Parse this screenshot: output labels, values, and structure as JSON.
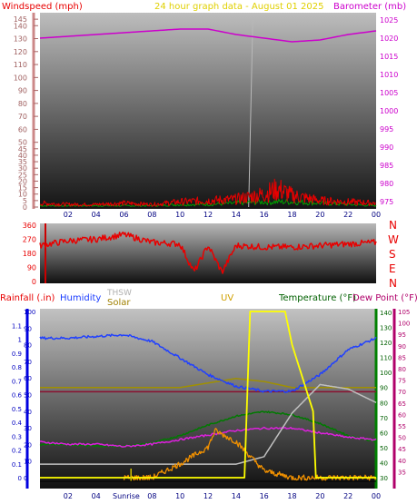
{
  "colors": {
    "wind": "#e80000",
    "gust": "#e80000",
    "baro": "#cc00cc",
    "title": "#e0d000",
    "winddir": "#e80000",
    "rain": "#1a3cff",
    "hum": "#1a3cff",
    "solar": "#a08000",
    "thsw": "#b0b0b0",
    "uv": "#ffff00",
    "temp": "#008000",
    "dew": "#b8006c",
    "hi": "#606000",
    "orange": "#f09000",
    "green": "#00a000",
    "navy": "#0000a0"
  },
  "header": {
    "windspeed": "Windspeed (mph)",
    "title": "24 hour graph data - August 01 2025",
    "barometer": "Barometer (mb)"
  },
  "labels": {
    "rainfall": "Rainfall (.in)",
    "humidity": "Humidity",
    "thsw": "THSW",
    "solar": "Solar",
    "uv": "UV",
    "temperature": "Temperature (°F)",
    "dewpoint": "Dew Point (°F)",
    "sunrise": "Sunrise",
    "compass": [
      "N",
      "W",
      "S",
      "E",
      "N"
    ]
  },
  "chart_data": [
    {
      "type": "line",
      "panel": "wind-barometer",
      "x_ticks": [
        "02",
        "04",
        "06",
        "08",
        "10",
        "12",
        "14",
        "16",
        "18",
        "20",
        "22",
        "00"
      ],
      "ylim_left": [
        0,
        150
      ],
      "yticks_left": [
        0,
        5,
        10,
        15,
        20,
        25,
        30,
        35,
        40,
        45,
        50,
        60,
        70,
        80,
        90,
        100,
        110,
        120,
        130,
        140,
        145
      ],
      "ylim_right": [
        975,
        1025
      ],
      "yticks_right": [
        975,
        980,
        985,
        990,
        995,
        1000,
        1005,
        1010,
        1015,
        1020,
        1025
      ],
      "series": [
        {
          "name": "Barometer (mb)",
          "x": [
            0,
            2,
            4,
            6,
            8,
            10,
            12,
            14,
            16,
            18,
            20,
            22,
            24
          ],
          "values": [
            1020,
            1020.5,
            1021,
            1021.5,
            1022,
            1022.5,
            1022.5,
            1021,
            1020,
            1019,
            1019.5,
            1021,
            1022
          ]
        },
        {
          "name": "Windspeed (mph)",
          "x": [
            0,
            2,
            4,
            6,
            8,
            10,
            12,
            14,
            16,
            17,
            18,
            20,
            22,
            24
          ],
          "values": [
            3,
            2,
            2,
            3,
            2,
            4,
            5,
            6,
            10,
            14,
            9,
            5,
            4,
            3
          ]
        },
        {
          "x": [
            0,
            2,
            4,
            6,
            8,
            10,
            12,
            14,
            16,
            18,
            20,
            22,
            24
          ],
          "values": [
            1,
            1,
            1,
            1,
            1,
            2,
            2,
            3,
            4,
            4,
            3,
            2,
            1
          ]
        }
      ]
    },
    {
      "type": "line",
      "panel": "wind-direction",
      "x_ticks": [
        "02",
        "04",
        "06",
        "08",
        "10",
        "12",
        "14",
        "16",
        "18",
        "20",
        "22",
        "00"
      ],
      "ylim": [
        0,
        360
      ],
      "yticks": [
        0,
        90,
        180,
        270,
        360
      ],
      "series": [
        {
          "x": [
            0,
            2,
            4,
            6,
            8,
            10,
            11,
            12,
            13,
            14,
            16,
            18,
            20,
            22,
            24
          ],
          "values": [
            230,
            260,
            270,
            300,
            250,
            240,
            60,
            230,
            60,
            230,
            220,
            220,
            230,
            240,
            250
          ]
        }
      ]
    },
    {
      "type": "line",
      "panel": "climate",
      "x_ticks": [
        "02",
        "04",
        "Sunrise",
        "08",
        "10",
        "12",
        "14",
        "16",
        "18",
        "20",
        "22",
        "00"
      ],
      "rain_ylim": [
        0,
        1.2
      ],
      "rain_yticks": [
        0,
        0.1,
        0.2,
        0.3,
        0.4,
        0.5,
        0.6,
        0.7,
        0.8,
        0.9,
        1,
        1.1
      ],
      "humidity_ylim": [
        0,
        100
      ],
      "humidity_yticks": [
        0,
        10,
        20,
        30,
        40,
        50,
        60,
        70,
        80,
        90,
        100
      ],
      "uv_ylim": [
        0,
        5
      ],
      "temp_ylim": [
        30,
        140
      ],
      "temp_yticks": [
        30,
        40,
        50,
        60,
        70,
        80,
        90,
        100,
        110,
        120,
        130,
        140
      ],
      "dew_ylim": [
        30,
        105
      ],
      "dew_yticks": [
        35,
        40,
        45,
        50,
        55,
        60,
        65,
        70,
        75,
        80,
        85,
        90,
        95,
        100,
        105
      ],
      "series": [
        {
          "name": "Humidity",
          "x": [
            0,
            2,
            4,
            6,
            8,
            10,
            12,
            14,
            16,
            18,
            20,
            22,
            24
          ],
          "values": [
            84,
            84,
            85,
            86,
            82,
            72,
            62,
            55,
            52,
            52,
            62,
            77,
            84
          ]
        },
        {
          "name": "Temperature (°F)",
          "x": [
            0,
            2,
            4,
            6,
            8,
            10,
            12,
            14,
            16,
            18,
            20,
            22,
            24
          ],
          "values": [
            52,
            52,
            51,
            51,
            53,
            58,
            65,
            71,
            74,
            72,
            66,
            58,
            54
          ]
        },
        {
          "name": "Dew Point (°F)",
          "x": [
            0,
            2,
            4,
            6,
            8,
            10,
            12,
            14,
            16,
            18,
            20,
            22,
            24
          ],
          "values": [
            48,
            47,
            47,
            46,
            47,
            49,
            51,
            53,
            54,
            54,
            52,
            50,
            49
          ]
        },
        {
          "name": "THSW",
          "x": [
            0,
            2,
            4,
            6,
            8,
            10,
            12,
            14,
            16,
            18,
            20,
            22,
            24
          ],
          "values": [
            39,
            39,
            39,
            39,
            39,
            39,
            39,
            39,
            44,
            73,
            92,
            89,
            80
          ]
        },
        {
          "name": "Solar",
          "x": [
            0,
            2,
            4,
            6,
            8,
            10,
            12,
            14,
            16,
            18,
            20,
            24
          ],
          "values": [
            90,
            90,
            90,
            90,
            90,
            90,
            93,
            96,
            94,
            90,
            90,
            90
          ]
        },
        {
          "name": "UV",
          "x": [
            0,
            14.5,
            14.6,
            15,
            17.5,
            18,
            19.5,
            19.7,
            24
          ],
          "values": [
            0,
            0,
            0,
            5,
            5,
            4,
            2,
            0,
            0
          ]
        },
        {
          "name": "Rainfall (.in)",
          "x": [
            0,
            24
          ],
          "values": [
            0.62,
            0.62
          ]
        },
        {
          "x": [
            6,
            8,
            10,
            12,
            12.5,
            14,
            16,
            18,
            20,
            24
          ],
          "values": [
            0,
            0,
            0.1,
            0.22,
            0.34,
            0.26,
            0.05,
            0,
            0,
            0
          ]
        }
      ]
    }
  ]
}
